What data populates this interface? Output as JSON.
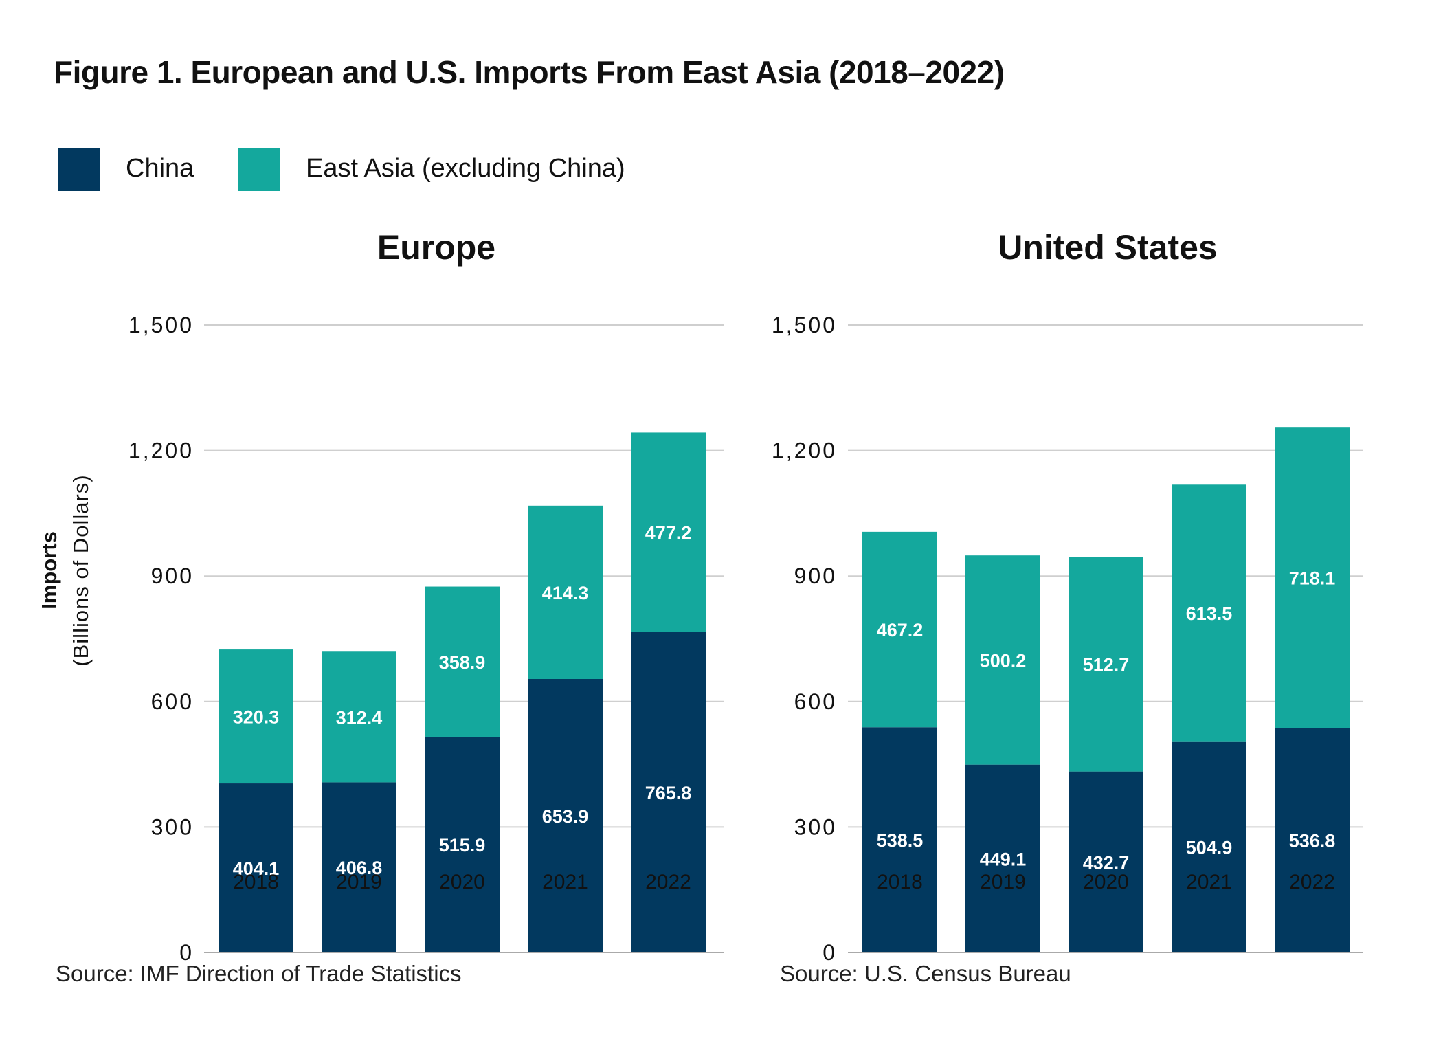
{
  "title": "Figure 1. European and U.S. Imports From East Asia (2018–2022)",
  "legend": [
    {
      "label": "China",
      "color": "#02395F"
    },
    {
      "label": "East Asia (excluding China)",
      "color": "#14A89D"
    }
  ],
  "chart_data": [
    {
      "type": "bar",
      "stacked": true,
      "title": "Europe",
      "ylabel": "Imports",
      "ylabel_sub": "(Billions of Dollars)",
      "categories": [
        "2018",
        "2019",
        "2020",
        "2021",
        "2022"
      ],
      "ylim": [
        0,
        1500
      ],
      "yticks": [
        0,
        300,
        600,
        900,
        1200,
        1500
      ],
      "ytick_labels": [
        "0",
        "300",
        "600",
        "900",
        "1,200",
        "1,500"
      ],
      "grid": true,
      "series": [
        {
          "name": "China",
          "color": "#02395F",
          "values": [
            404.1,
            406.8,
            515.9,
            653.9,
            765.8
          ],
          "labels": [
            "404.1",
            "406.8",
            "515.9",
            "653.9",
            "765.8"
          ]
        },
        {
          "name": "East Asia (excluding China)",
          "color": "#14A89D",
          "values": [
            320.3,
            312.4,
            358.9,
            414.3,
            477.2
          ],
          "labels": [
            "320.3",
            "312.4",
            "358.9",
            "414.3",
            "477.2"
          ]
        }
      ],
      "source": "Source: IMF Direction of Trade Statistics"
    },
    {
      "type": "bar",
      "stacked": true,
      "title": "United States",
      "categories": [
        "2018",
        "2019",
        "2020",
        "2021",
        "2022"
      ],
      "ylim": [
        0,
        1500
      ],
      "yticks": [
        0,
        300,
        600,
        900,
        1200,
        1500
      ],
      "ytick_labels": [
        "0",
        "300",
        "600",
        "900",
        "1,200",
        "1,500"
      ],
      "grid": true,
      "series": [
        {
          "name": "China",
          "color": "#02395F",
          "values": [
            538.5,
            449.1,
            432.7,
            504.9,
            536.8
          ],
          "labels": [
            "538.5",
            "449.1",
            "432.7",
            "504.9",
            "536.8"
          ]
        },
        {
          "name": "East Asia (excluding China)",
          "color": "#14A89D",
          "values": [
            467.2,
            500.2,
            512.7,
            613.5,
            718.1
          ],
          "labels": [
            "467.2",
            "500.2",
            "512.7",
            "613.5",
            "718.1"
          ]
        }
      ],
      "source": "Source: U.S. Census Bureau"
    }
  ]
}
